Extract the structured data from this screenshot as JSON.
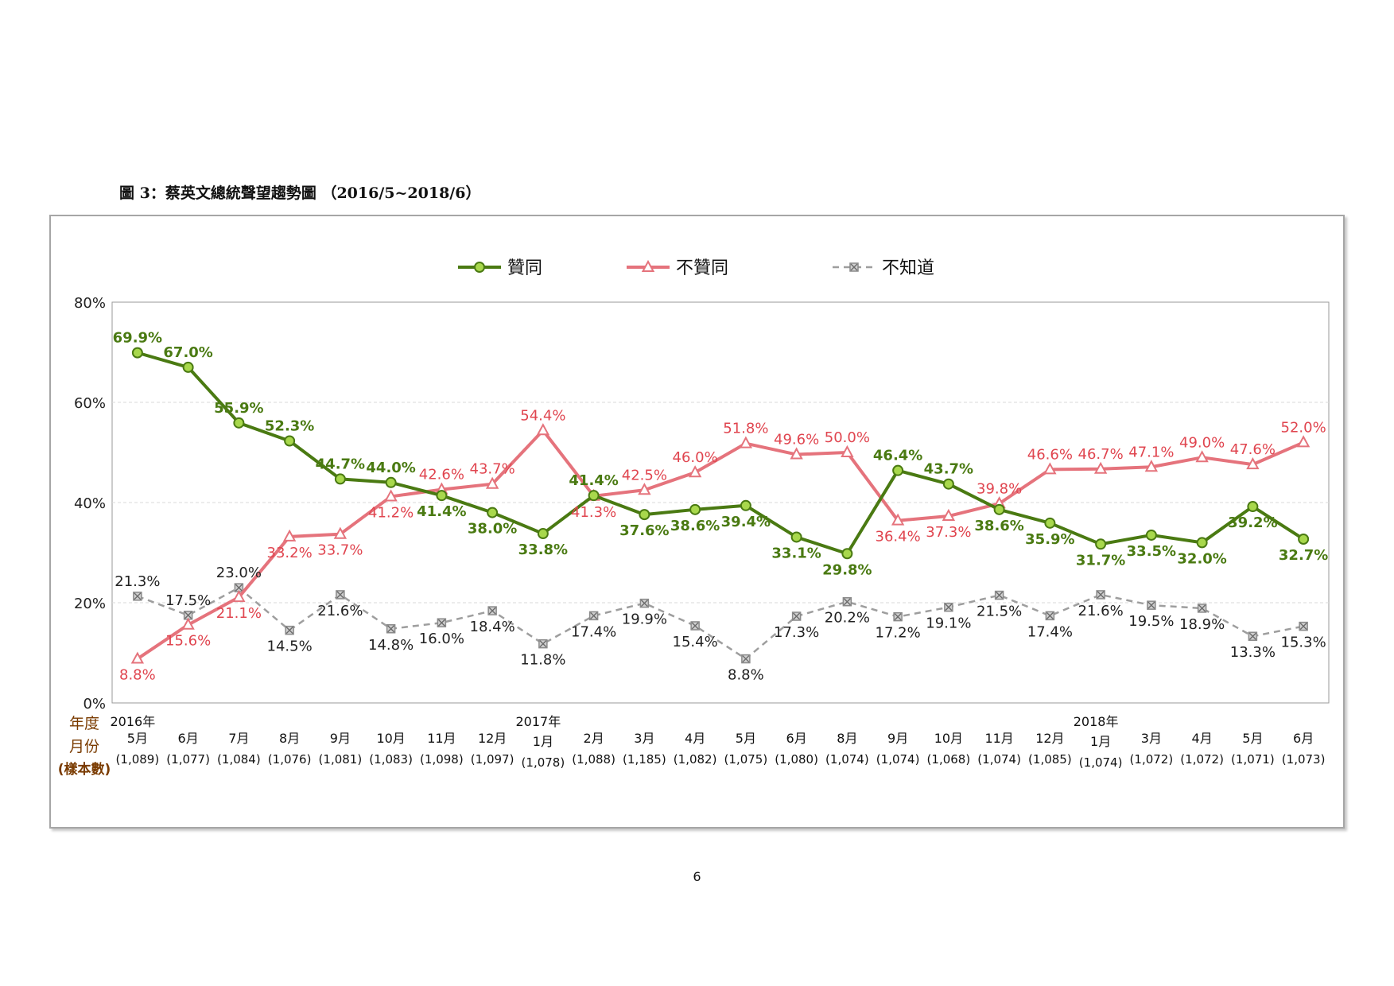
{
  "page": {
    "figure_title": "圖 3：蔡英文總統聲望趨勢圖 （2016/5~2018/6）",
    "page_number": "6"
  },
  "colors": {
    "approve": "#4a7a12",
    "approve_marker": "#a8d84c",
    "disapprove": "#e5737c",
    "unknown": "#9e9e9e"
  },
  "chart_data": {
    "type": "line",
    "title": "",
    "legend_position": "top-center",
    "grid": true,
    "ylim": [
      0,
      80
    ],
    "y_ticks": [
      "0%",
      "20%",
      "40%",
      "60%",
      "80%"
    ],
    "row_labels": [
      "年度",
      "月份",
      "(樣本數)"
    ],
    "categories": [
      {
        "year": "2016年",
        "month": "5月",
        "n": "(1,089)"
      },
      {
        "year": "",
        "month": "6月",
        "n": "(1,077)"
      },
      {
        "year": "",
        "month": "7月",
        "n": "(1,084)"
      },
      {
        "year": "",
        "month": "8月",
        "n": "(1,076)"
      },
      {
        "year": "",
        "month": "9月",
        "n": "(1,081)"
      },
      {
        "year": "",
        "month": "10月",
        "n": "(1,083)"
      },
      {
        "year": "",
        "month": "11月",
        "n": "(1,098)"
      },
      {
        "year": "",
        "month": "12月",
        "n": "(1,097)"
      },
      {
        "year": "2017年",
        "month": "1月",
        "n": "(1,078)"
      },
      {
        "year": "",
        "month": "2月",
        "n": "(1,088)"
      },
      {
        "year": "",
        "month": "3月",
        "n": "(1,185)"
      },
      {
        "year": "",
        "month": "4月",
        "n": "(1,082)"
      },
      {
        "year": "",
        "month": "5月",
        "n": "(1,075)"
      },
      {
        "year": "",
        "month": "6月",
        "n": "(1,080)"
      },
      {
        "year": "",
        "month": "8月",
        "n": "(1,074)"
      },
      {
        "year": "",
        "month": "9月",
        "n": "(1,074)"
      },
      {
        "year": "",
        "month": "10月",
        "n": "(1,068)"
      },
      {
        "year": "",
        "month": "11月",
        "n": "(1,074)"
      },
      {
        "year": "",
        "month": "12月",
        "n": "(1,085)"
      },
      {
        "year": "2018年",
        "month": "1月",
        "n": "(1,074)"
      },
      {
        "year": "",
        "month": "3月",
        "n": "(1,072)"
      },
      {
        "year": "",
        "month": "4月",
        "n": "(1,072)"
      },
      {
        "year": "",
        "month": "5月",
        "n": "(1,071)"
      },
      {
        "year": "",
        "month": "6月",
        "n": "(1,073)"
      }
    ],
    "series": [
      {
        "name": "贊同",
        "key": "approve",
        "marker": "circle",
        "values": [
          69.9,
          67.0,
          55.9,
          52.3,
          44.7,
          44.0,
          41.4,
          38.0,
          33.8,
          41.4,
          37.6,
          38.6,
          39.4,
          33.1,
          29.8,
          46.4,
          43.7,
          38.6,
          35.9,
          31.7,
          33.5,
          32.0,
          39.2,
          32.7
        ],
        "labels": [
          "69.9%",
          "67.0%",
          "55.9%",
          "52.3%",
          "44.7%",
          "44.0%",
          "41.4%",
          "38.0%",
          "33.8%",
          "41.4%",
          "37.6%",
          "38.6%",
          "39.4%",
          "33.1%",
          "29.8%",
          "46.4%",
          "43.7%",
          "38.6%",
          "35.9%",
          "31.7%",
          "33.5%",
          "32.0%",
          "39.2%",
          "32.7%"
        ]
      },
      {
        "name": "不贊同",
        "key": "disapprove",
        "marker": "triangle",
        "values": [
          8.8,
          15.6,
          21.1,
          33.2,
          33.7,
          41.2,
          42.6,
          43.7,
          54.4,
          41.3,
          42.5,
          46.0,
          51.8,
          49.6,
          50.0,
          36.4,
          37.3,
          39.8,
          46.6,
          46.7,
          47.1,
          49.0,
          47.6,
          52.0
        ],
        "labels": [
          "8.8%",
          "15.6%",
          "21.1%",
          "33.2%",
          "33.7%",
          "41.2%",
          "42.6%",
          "43.7%",
          "54.4%",
          "41.3%",
          "42.5%",
          "46.0%",
          "51.8%",
          "49.6%",
          "50.0%",
          "36.4%",
          "37.3%",
          "39.8%",
          "46.6%",
          "46.7%",
          "47.1%",
          "49.0%",
          "47.6%",
          "52.0%"
        ]
      },
      {
        "name": "不知道",
        "key": "unknown",
        "marker": "square-x",
        "values": [
          21.3,
          17.5,
          23.0,
          14.5,
          21.6,
          14.8,
          16.0,
          18.4,
          11.8,
          17.4,
          19.9,
          15.4,
          8.8,
          17.3,
          20.2,
          17.2,
          19.1,
          21.5,
          17.4,
          21.6,
          19.5,
          18.9,
          13.3,
          15.3
        ],
        "labels": [
          "21.3%",
          "17.5%",
          "23.0%",
          "14.5%",
          "21.6%",
          "14.8%",
          "16.0%",
          "18.4%",
          "11.8%",
          "17.4%",
          "19.9%",
          "15.4%",
          "8.8%",
          "17.3%",
          "20.2%",
          "17.2%",
          "19.1%",
          "21.5%",
          "17.4%",
          "21.6%",
          "19.5%",
          "18.9%",
          "13.3%",
          "15.3%"
        ]
      }
    ]
  }
}
